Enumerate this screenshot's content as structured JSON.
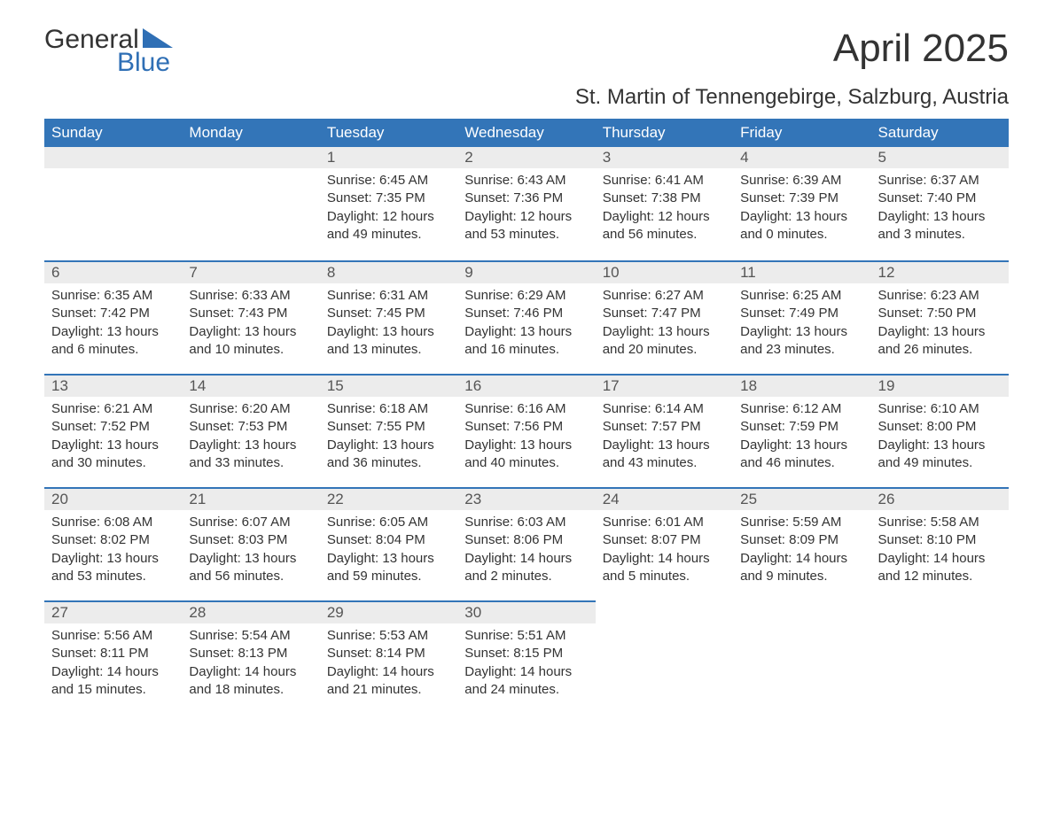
{
  "brand": {
    "word1": "General",
    "word2": "Blue",
    "accent_color": "#2f6fb5"
  },
  "title": "April 2025",
  "location": "St. Martin of Tennengebirge, Salzburg, Austria",
  "colors": {
    "header_bg": "#3375b8",
    "header_text": "#ffffff",
    "daynum_bg": "#ececec",
    "rule": "#3375b8",
    "body_text": "#333333"
  },
  "weekdays": [
    "Sunday",
    "Monday",
    "Tuesday",
    "Wednesday",
    "Thursday",
    "Friday",
    "Saturday"
  ],
  "weeks": [
    [
      null,
      null,
      {
        "n": "1",
        "lines": [
          "Sunrise: 6:45 AM",
          "Sunset: 7:35 PM",
          "Daylight: 12 hours",
          "and 49 minutes."
        ]
      },
      {
        "n": "2",
        "lines": [
          "Sunrise: 6:43 AM",
          "Sunset: 7:36 PM",
          "Daylight: 12 hours",
          "and 53 minutes."
        ]
      },
      {
        "n": "3",
        "lines": [
          "Sunrise: 6:41 AM",
          "Sunset: 7:38 PM",
          "Daylight: 12 hours",
          "and 56 minutes."
        ]
      },
      {
        "n": "4",
        "lines": [
          "Sunrise: 6:39 AM",
          "Sunset: 7:39 PM",
          "Daylight: 13 hours",
          "and 0 minutes."
        ]
      },
      {
        "n": "5",
        "lines": [
          "Sunrise: 6:37 AM",
          "Sunset: 7:40 PM",
          "Daylight: 13 hours",
          "and 3 minutes."
        ]
      }
    ],
    [
      {
        "n": "6",
        "lines": [
          "Sunrise: 6:35 AM",
          "Sunset: 7:42 PM",
          "Daylight: 13 hours",
          "and 6 minutes."
        ]
      },
      {
        "n": "7",
        "lines": [
          "Sunrise: 6:33 AM",
          "Sunset: 7:43 PM",
          "Daylight: 13 hours",
          "and 10 minutes."
        ]
      },
      {
        "n": "8",
        "lines": [
          "Sunrise: 6:31 AM",
          "Sunset: 7:45 PM",
          "Daylight: 13 hours",
          "and 13 minutes."
        ]
      },
      {
        "n": "9",
        "lines": [
          "Sunrise: 6:29 AM",
          "Sunset: 7:46 PM",
          "Daylight: 13 hours",
          "and 16 minutes."
        ]
      },
      {
        "n": "10",
        "lines": [
          "Sunrise: 6:27 AM",
          "Sunset: 7:47 PM",
          "Daylight: 13 hours",
          "and 20 minutes."
        ]
      },
      {
        "n": "11",
        "lines": [
          "Sunrise: 6:25 AM",
          "Sunset: 7:49 PM",
          "Daylight: 13 hours",
          "and 23 minutes."
        ]
      },
      {
        "n": "12",
        "lines": [
          "Sunrise: 6:23 AM",
          "Sunset: 7:50 PM",
          "Daylight: 13 hours",
          "and 26 minutes."
        ]
      }
    ],
    [
      {
        "n": "13",
        "lines": [
          "Sunrise: 6:21 AM",
          "Sunset: 7:52 PM",
          "Daylight: 13 hours",
          "and 30 minutes."
        ]
      },
      {
        "n": "14",
        "lines": [
          "Sunrise: 6:20 AM",
          "Sunset: 7:53 PM",
          "Daylight: 13 hours",
          "and 33 minutes."
        ]
      },
      {
        "n": "15",
        "lines": [
          "Sunrise: 6:18 AM",
          "Sunset: 7:55 PM",
          "Daylight: 13 hours",
          "and 36 minutes."
        ]
      },
      {
        "n": "16",
        "lines": [
          "Sunrise: 6:16 AM",
          "Sunset: 7:56 PM",
          "Daylight: 13 hours",
          "and 40 minutes."
        ]
      },
      {
        "n": "17",
        "lines": [
          "Sunrise: 6:14 AM",
          "Sunset: 7:57 PM",
          "Daylight: 13 hours",
          "and 43 minutes."
        ]
      },
      {
        "n": "18",
        "lines": [
          "Sunrise: 6:12 AM",
          "Sunset: 7:59 PM",
          "Daylight: 13 hours",
          "and 46 minutes."
        ]
      },
      {
        "n": "19",
        "lines": [
          "Sunrise: 6:10 AM",
          "Sunset: 8:00 PM",
          "Daylight: 13 hours",
          "and 49 minutes."
        ]
      }
    ],
    [
      {
        "n": "20",
        "lines": [
          "Sunrise: 6:08 AM",
          "Sunset: 8:02 PM",
          "Daylight: 13 hours",
          "and 53 minutes."
        ]
      },
      {
        "n": "21",
        "lines": [
          "Sunrise: 6:07 AM",
          "Sunset: 8:03 PM",
          "Daylight: 13 hours",
          "and 56 minutes."
        ]
      },
      {
        "n": "22",
        "lines": [
          "Sunrise: 6:05 AM",
          "Sunset: 8:04 PM",
          "Daylight: 13 hours",
          "and 59 minutes."
        ]
      },
      {
        "n": "23",
        "lines": [
          "Sunrise: 6:03 AM",
          "Sunset: 8:06 PM",
          "Daylight: 14 hours",
          "and 2 minutes."
        ]
      },
      {
        "n": "24",
        "lines": [
          "Sunrise: 6:01 AM",
          "Sunset: 8:07 PM",
          "Daylight: 14 hours",
          "and 5 minutes."
        ]
      },
      {
        "n": "25",
        "lines": [
          "Sunrise: 5:59 AM",
          "Sunset: 8:09 PM",
          "Daylight: 14 hours",
          "and 9 minutes."
        ]
      },
      {
        "n": "26",
        "lines": [
          "Sunrise: 5:58 AM",
          "Sunset: 8:10 PM",
          "Daylight: 14 hours",
          "and 12 minutes."
        ]
      }
    ],
    [
      {
        "n": "27",
        "lines": [
          "Sunrise: 5:56 AM",
          "Sunset: 8:11 PM",
          "Daylight: 14 hours",
          "and 15 minutes."
        ]
      },
      {
        "n": "28",
        "lines": [
          "Sunrise: 5:54 AM",
          "Sunset: 8:13 PM",
          "Daylight: 14 hours",
          "and 18 minutes."
        ]
      },
      {
        "n": "29",
        "lines": [
          "Sunrise: 5:53 AM",
          "Sunset: 8:14 PM",
          "Daylight: 14 hours",
          "and 21 minutes."
        ]
      },
      {
        "n": "30",
        "lines": [
          "Sunrise: 5:51 AM",
          "Sunset: 8:15 PM",
          "Daylight: 14 hours",
          "and 24 minutes."
        ]
      },
      null,
      null,
      null
    ]
  ]
}
